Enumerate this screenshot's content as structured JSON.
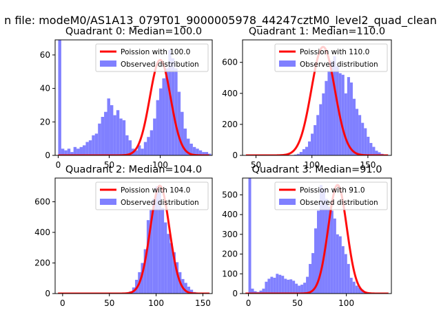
{
  "figure": {
    "suptitle": "n file: modeM0/AS1A13_079T01_9000005978_44247cztM0_level2_quad_clean"
  },
  "chart_data": [
    {
      "type": "histogram",
      "title": "Quadrant 0: Median=100.0",
      "xlim": [
        -3,
        151
      ],
      "ylim": [
        0,
        69
      ],
      "xticks": [
        0,
        50,
        100
      ],
      "yticks": [
        0,
        20,
        40,
        60
      ],
      "legend_position": "upper-right",
      "legend": [
        "Poission with 100.0",
        "Observed distribution"
      ],
      "fit": {
        "label": "Poission with 100.0",
        "mean": 100,
        "sigma": 10.2,
        "peak": 57,
        "color": "#ff0000"
      },
      "observed": {
        "label": "Observed distribution",
        "color": "#8080ff",
        "bin_start": 0,
        "bin_width": 3,
        "counts": [
          69,
          4,
          3,
          4,
          2,
          5,
          4,
          5,
          6,
          8,
          9,
          12,
          13,
          19,
          23,
          26,
          34,
          30,
          24,
          27,
          22,
          21,
          12,
          9,
          4,
          3,
          6,
          4,
          8,
          11,
          15,
          22,
          33,
          40,
          46,
          52,
          63,
          58,
          52,
          38,
          26,
          16,
          10,
          7,
          5,
          4,
          3,
          2,
          2,
          1
        ]
      }
    },
    {
      "type": "histogram",
      "title": "Quadrant 1: Median=110.0",
      "xlim": [
        38,
        171
      ],
      "ylim": [
        0,
        745
      ],
      "xticks": [
        50,
        100,
        150
      ],
      "yticks": [
        0,
        200,
        400,
        600
      ],
      "legend_position": "upper-right",
      "legend": [
        "Poission with 110.0",
        "Observed distribution"
      ],
      "fit": {
        "label": "Poission with 110.0",
        "mean": 110,
        "sigma": 10.5,
        "peak": 700,
        "color": "#ff0000"
      },
      "observed": {
        "label": "Observed distribution",
        "color": "#8080ff",
        "bin_start": 44,
        "bin_width": 2.5,
        "counts": [
          0,
          0,
          0,
          0,
          0,
          0,
          0,
          0,
          0,
          0,
          0,
          0,
          0,
          0,
          1,
          2,
          5,
          10,
          22,
          40,
          55,
          90,
          140,
          195,
          260,
          330,
          400,
          480,
          545,
          610,
          640,
          575,
          530,
          520,
          400,
          505,
          470,
          365,
          300,
          260,
          210,
          175,
          120,
          80,
          55,
          30,
          20,
          10,
          5,
          3,
          2,
          1,
          0,
          0
        ]
      }
    },
    {
      "type": "histogram",
      "title": "Quadrant 2: Median=104.0",
      "xlim": [
        -8,
        160
      ],
      "ylim": [
        0,
        755
      ],
      "xticks": [
        0,
        50,
        100,
        150
      ],
      "yticks": [
        0,
        200,
        400,
        600
      ],
      "legend_position": "upper-right",
      "legend": [
        "Poission with 104.0",
        "Observed distribution"
      ],
      "fit": {
        "label": "Poission with 104.0",
        "mean": 104,
        "sigma": 10.2,
        "peak": 705,
        "color": "#ff0000"
      },
      "observed": {
        "label": "Observed distribution",
        "color": "#8080ff",
        "bin_start": 0,
        "bin_width": 3.1,
        "counts": [
          0,
          0,
          0,
          0,
          0,
          0,
          0,
          0,
          0,
          0,
          0,
          0,
          0,
          0,
          0,
          0,
          0,
          0,
          0,
          0,
          1,
          3,
          8,
          15,
          40,
          90,
          140,
          200,
          290,
          480,
          545,
          620,
          700,
          660,
          560,
          465,
          390,
          330,
          270,
          205,
          140,
          95,
          70,
          45,
          25,
          10,
          5,
          2,
          1,
          1
        ]
      }
    },
    {
      "type": "histogram",
      "title": "Quadrant 3: Median=91.0",
      "xlim": [
        -6,
        146
      ],
      "ylim": [
        0,
        585
      ],
      "xticks": [
        0,
        50,
        100
      ],
      "yticks": [
        0,
        100,
        200,
        300,
        400,
        500
      ],
      "legend_position": "upper-right",
      "legend": [
        "Poission with 91.0",
        "Observed distribution"
      ],
      "fit": {
        "label": "Poission with 91.0",
        "mean": 91,
        "sigma": 9.5,
        "peak": 550,
        "color": "#ff0000"
      },
      "observed": {
        "label": "Observed distribution",
        "color": "#8080ff",
        "bin_start": 0,
        "bin_width": 2.8,
        "counts": [
          585,
          25,
          12,
          8,
          15,
          25,
          60,
          75,
          85,
          80,
          100,
          95,
          90,
          75,
          70,
          72,
          65,
          50,
          40,
          45,
          55,
          85,
          150,
          205,
          330,
          420,
          550,
          530,
          480,
          440,
          420,
          380,
          300,
          290,
          240,
          200,
          150,
          80,
          60,
          40,
          30,
          20,
          10,
          5,
          2,
          1,
          0,
          0,
          0,
          0
        ]
      }
    }
  ]
}
